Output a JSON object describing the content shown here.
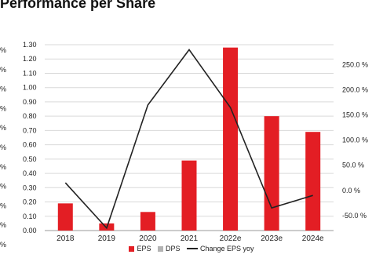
{
  "header": {
    "title": "Performance per Share"
  },
  "left_edge_labels": [
    "%",
    "%",
    "%",
    "%",
    "%",
    "%",
    "%",
    "%",
    "%",
    "%",
    "%"
  ],
  "legend": [
    {
      "label": "EPS",
      "kind": "box",
      "color": "#e31e24"
    },
    {
      "label": "DPS",
      "kind": "box",
      "color": "#b3b3b3"
    },
    {
      "label": "Change EPS yoy",
      "kind": "line",
      "color": "#222222"
    }
  ],
  "chart_data": {
    "type": "bar",
    "title": "Performance per Share",
    "categories": [
      "2018",
      "2019",
      "2020",
      "2021",
      "2022e",
      "2023e",
      "2024e"
    ],
    "series": [
      {
        "name": "EPS",
        "type": "bar",
        "axis": "left",
        "color": "#e31e24",
        "values": [
          0.19,
          0.05,
          0.13,
          0.49,
          1.28,
          0.8,
          0.69
        ]
      },
      {
        "name": "DPS",
        "type": "bar",
        "axis": "left",
        "color": "#b3b3b3",
        "values": [
          0,
          0,
          0,
          0,
          0,
          0,
          0
        ]
      },
      {
        "name": "Change EPS yoy",
        "type": "line",
        "axis": "right",
        "color": "#222222",
        "values": [
          15.0,
          -75.0,
          170.0,
          280.0,
          165.0,
          -35.0,
          -10.0
        ]
      }
    ],
    "y_left": {
      "min": 0,
      "max": 1.3,
      "step": 0.1,
      "ticks": [
        "0.00",
        "0.10",
        "0.20",
        "0.30",
        "0.40",
        "0.50",
        "0.60",
        "0.70",
        "0.80",
        "0.90",
        "1.00",
        "1.10",
        "1.20",
        "1.30"
      ]
    },
    "y_right": {
      "min": -80,
      "max": 290,
      "ticks": [
        {
          "value": -50,
          "label": "-50.0 %"
        },
        {
          "value": 0,
          "label": "0.0 %"
        },
        {
          "value": 50,
          "label": "50.0 %"
        },
        {
          "value": 100,
          "label": "100.0 %"
        },
        {
          "value": 150,
          "label": "150.0 %"
        },
        {
          "value": 200,
          "label": "200.0 %"
        },
        {
          "value": 250,
          "label": "250.0 %"
        }
      ]
    },
    "grid": true,
    "legend_position": "bottom"
  }
}
